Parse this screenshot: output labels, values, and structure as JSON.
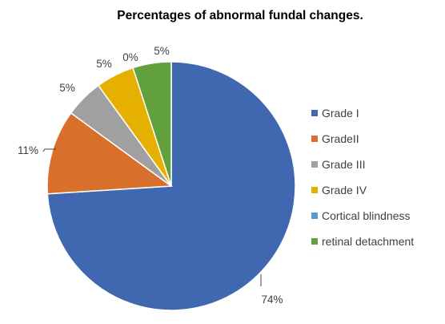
{
  "chart_data": {
    "type": "pie",
    "title": "Percentages of abnormal fundal changes.",
    "legend_position": "right",
    "slices": [
      {
        "name": "Grade I",
        "value": 74,
        "label": "74%",
        "color": "#4068B0"
      },
      {
        "name": "GradeII",
        "value": 11,
        "label": "11%",
        "color": "#D8702C"
      },
      {
        "name": "Grade III",
        "value": 5,
        "label": "5%",
        "color": "#A0A0A0"
      },
      {
        "name": "Grade IV",
        "value": 5,
        "label": "5%",
        "color": "#E6B000"
      },
      {
        "name": "Cortical blindness",
        "value": 0,
        "label": "0%",
        "color": "#5A9AD0"
      },
      {
        "name": "retinal detachment",
        "value": 5,
        "label": "5%",
        "color": "#62A03C"
      }
    ]
  }
}
